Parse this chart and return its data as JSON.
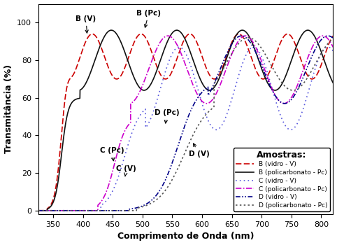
{
  "xlabel": "Comprimento de Onda (nm)",
  "ylabel": "Transmitância (%)",
  "xlim": [
    325,
    820
  ],
  "ylim": [
    -2,
    110
  ],
  "yticks": [
    0,
    20,
    40,
    60,
    80,
    100
  ],
  "xticks": [
    350,
    400,
    450,
    500,
    550,
    600,
    650,
    700,
    750,
    800
  ],
  "legend_title": "Amostras:"
}
